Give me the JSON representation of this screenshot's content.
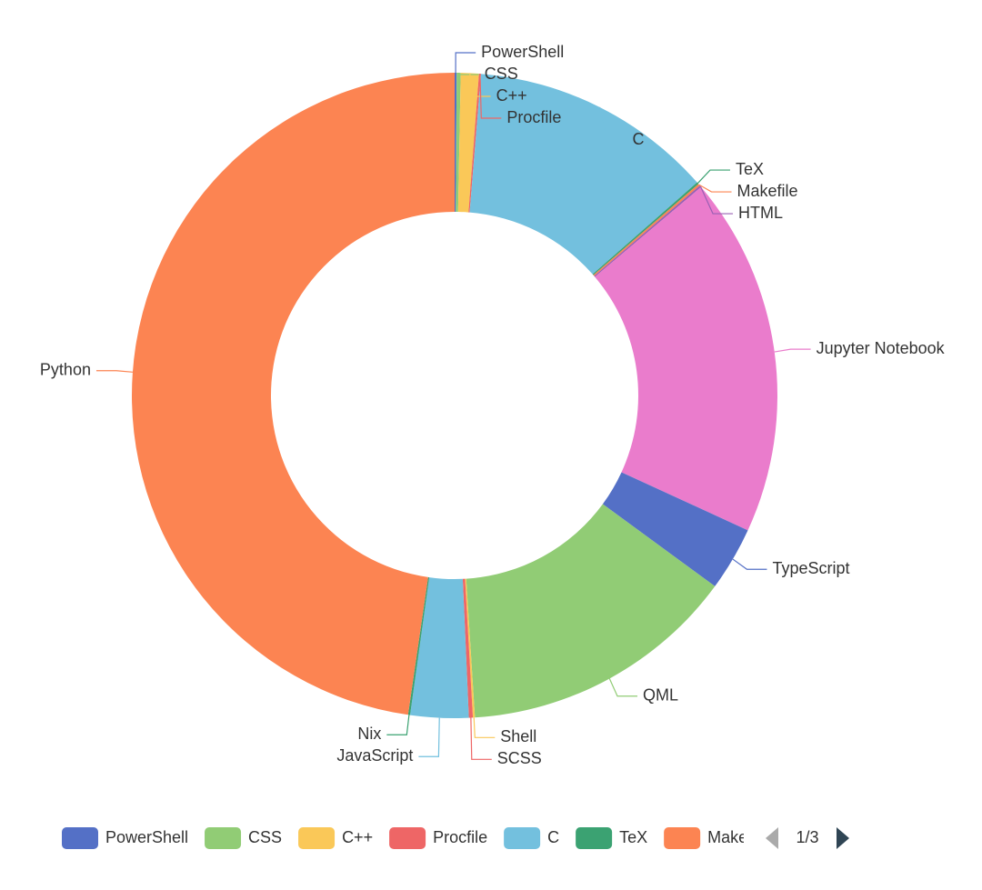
{
  "chart_data": {
    "type": "pie",
    "categories": [
      "PowerShell",
      "CSS",
      "C++",
      "Procfile",
      "C",
      "TeX",
      "Makefile",
      "HTML",
      "Jupyter Notebook",
      "TypeScript",
      "QML",
      "Shell",
      "SCSS",
      "JavaScript",
      "Nix",
      "Python"
    ],
    "values": [
      0.1,
      0.2,
      0.9,
      0.1,
      12.2,
      0.1,
      0.1,
      0.1,
      18.0,
      3.2,
      13.9,
      0.1,
      0.2,
      2.9,
      0.1,
      47.6
    ],
    "colors": [
      "#5470c6",
      "#91cc75",
      "#fac858",
      "#ee6666",
      "#73c0de",
      "#3ba272",
      "#fc8452",
      "#9a60b4",
      "#ea7ccc",
      "#5470c6",
      "#91cc75",
      "#fac858",
      "#ee6666",
      "#73c0de",
      "#3ba272",
      "#fc8452"
    ],
    "legend_position": "bottom",
    "legend_page": "1/3"
  }
}
